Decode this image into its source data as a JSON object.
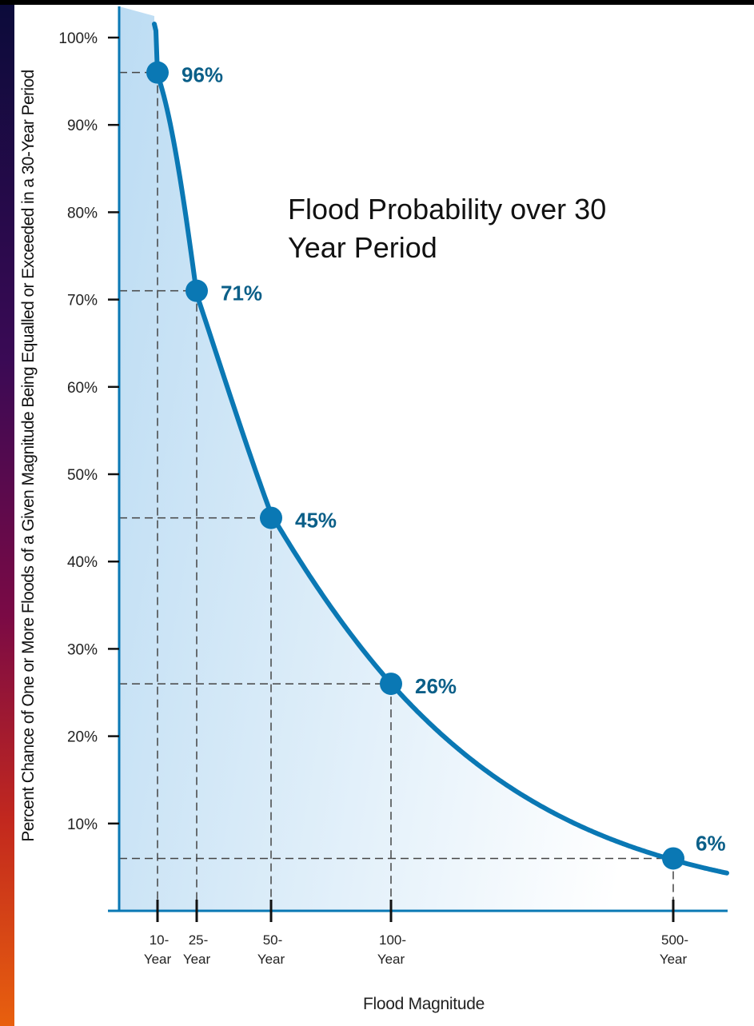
{
  "chart_data": {
    "type": "line",
    "title": "Flood Probability over 30 Year Period",
    "title_lines": [
      "Flood Probability over 30",
      "Year Period"
    ],
    "xlabel": "Flood Magnitude",
    "ylabel": "Percent Chance of One or More Floods of a Given Magnitude Being Equalled or Exceeded in a 30-Year Period",
    "y_ticks": [
      "10%",
      "20%",
      "30%",
      "40%",
      "50%",
      "60%",
      "70%",
      "80%",
      "90%",
      "100%"
    ],
    "ylim": [
      0,
      100
    ],
    "x_ticks": [
      {
        "line1": "10-",
        "line2": "Year"
      },
      {
        "line1": "25-",
        "line2": "Year"
      },
      {
        "line1": "50-",
        "line2": "Year"
      },
      {
        "line1": "100-",
        "line2": "Year"
      },
      {
        "line1": "500-",
        "line2": "Year"
      }
    ],
    "series": [
      {
        "return_period_years": [
          10,
          25,
          50,
          100,
          500
        ],
        "values": [
          96,
          71,
          45,
          26,
          6
        ],
        "labels": [
          "96%",
          "71%",
          "45%",
          "26%",
          "6%"
        ]
      }
    ],
    "colors": {
      "curve": "#0a78b4",
      "label": "#0b5f88",
      "fill_top": "#bcdcf3",
      "fill_fade": "#ffffff",
      "grid": "#444444",
      "axis": "#111111"
    },
    "grid": false
  }
}
